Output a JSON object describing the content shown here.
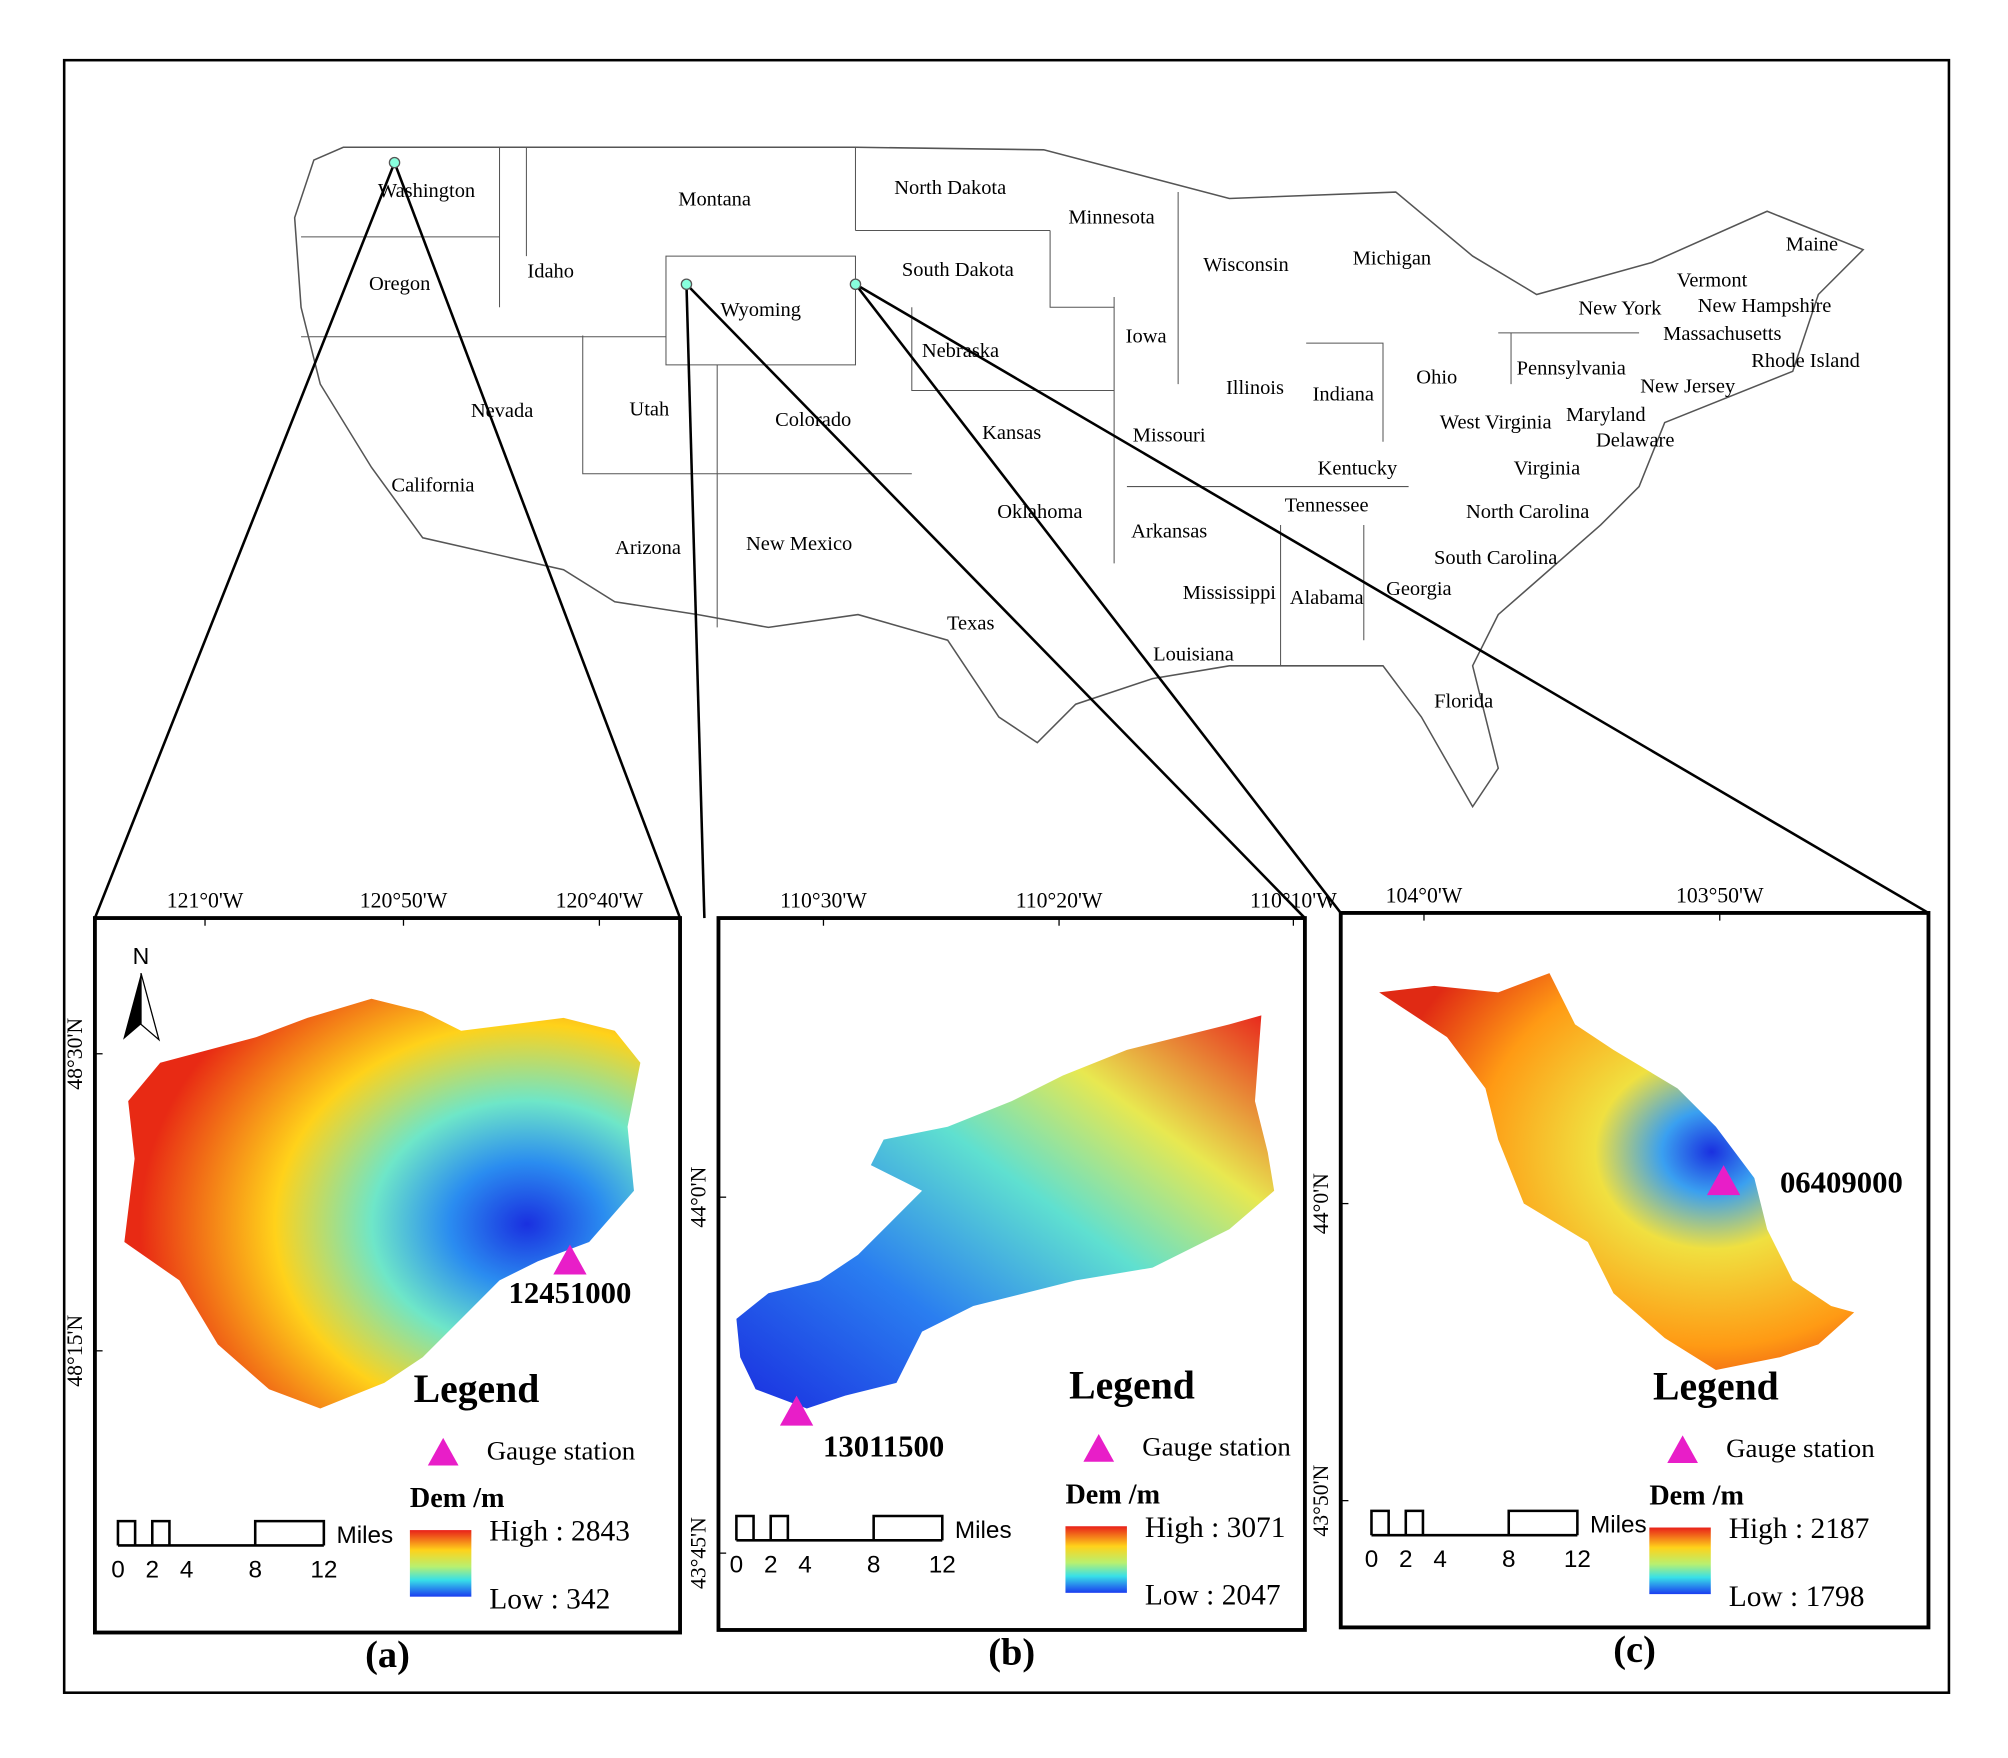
{
  "map": {
    "states": [
      "Washington",
      "Oregon",
      "Idaho",
      "Montana",
      "North Dakota",
      "South Dakota",
      "Wyoming",
      "Minnesota",
      "Wisconsin",
      "Michigan",
      "Nebraska",
      "Iowa",
      "Nevada",
      "Utah",
      "Colorado",
      "Kansas",
      "Missouri",
      "Illinois",
      "Indiana",
      "Ohio",
      "California",
      "Arizona",
      "New Mexico",
      "Oklahoma",
      "Arkansas",
      "Tennessee",
      "Kentucky",
      "West Virginia",
      "Virginia",
      "North Carolina",
      "South Carolina",
      "Georgia",
      "Alabama",
      "Mississippi",
      "Louisiana",
      "Texas",
      "Florida",
      "Pennsylvania",
      "New York",
      "Vermont",
      "New Hampshire",
      "Maine",
      "Massachusetts",
      "Rhode Island",
      "New Jersey",
      "Maryland",
      "Delaware"
    ]
  },
  "panels": [
    {
      "label": "(a)",
      "xticks": [
        "121°0'W",
        "120°50'W",
        "120°40'W"
      ],
      "yticks": [
        "48°30'N",
        "48°15'N"
      ],
      "north": "N",
      "station": "12451000",
      "legend_title": "Legend",
      "legend_item": "Gauge station",
      "dem_title": "Dem /m",
      "high": "High : 2843",
      "low": "Low : 342",
      "scale_unit": "Miles",
      "scale_ticks": [
        "0",
        "2",
        "4",
        "8",
        "12"
      ]
    },
    {
      "label": "(b)",
      "xticks": [
        "110°30'W",
        "110°20'W",
        "110°10'W"
      ],
      "yticks": [
        "44°0'N",
        "43°45'N"
      ],
      "station": "13011500",
      "legend_title": "Legend",
      "legend_item": "Gauge station",
      "dem_title": "Dem /m",
      "high": "High : 3071",
      "low": "Low : 2047",
      "scale_unit": "Miles",
      "scale_ticks": [
        "0",
        "2",
        "4",
        "8",
        "12"
      ]
    },
    {
      "label": "(c)",
      "xticks": [
        "104°0'W",
        "103°50'W"
      ],
      "yticks": [
        "44°0'N",
        "43°50'N"
      ],
      "station": "06409000",
      "legend_title": "Legend",
      "legend_item": "Gauge station",
      "dem_title": "Dem /m",
      "high": "High : 2187",
      "low": "Low : 1798",
      "scale_unit": "Miles",
      "scale_ticks": [
        "0",
        "2",
        "4",
        "8",
        "12"
      ]
    }
  ]
}
